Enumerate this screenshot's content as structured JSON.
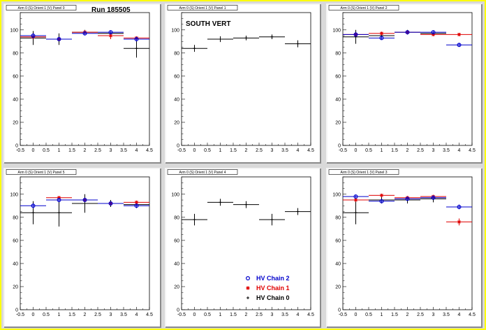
{
  "colors": {
    "hv0": "#000000",
    "hv1": "#e00000",
    "hv2": "#0000cc"
  },
  "run_label": "Run 185505",
  "legend": [
    {
      "key": "hv2",
      "label": "HV Chain 2",
      "marker": "circle"
    },
    {
      "key": "hv1",
      "label": "HV Chain 1",
      "marker": "star"
    },
    {
      "key": "hv0",
      "label": "HV Chain 0",
      "marker": "plus"
    }
  ],
  "chart_data": [
    {
      "type": "scatter",
      "title": "Arm 0 (S) Orient 1 (V) Panel 0",
      "annotation": "",
      "xlim": [
        -0.5,
        4.5
      ],
      "ylim": [
        0,
        115
      ],
      "xticks": [
        "-0.5",
        "0",
        "0.5",
        "1",
        "1.5",
        "2",
        "2.5",
        "3",
        "3.5",
        "4",
        "4.5"
      ],
      "yticks": [
        "0",
        "20",
        "40",
        "60",
        "80",
        "100"
      ],
      "series": [
        {
          "key": "hv0",
          "points": [
            {
              "x": 0,
              "y": 93,
              "xerr": 0.5,
              "yerr": 6
            },
            {
              "x": 1,
              "y": 92,
              "xerr": 0.5,
              "yerr": 5
            },
            {
              "x": 2,
              "y": 98,
              "xerr": 0.5,
              "yerr": 2
            },
            {
              "x": 3,
              "y": 97,
              "xerr": 0.5,
              "yerr": 2
            },
            {
              "x": 4,
              "y": 84,
              "xerr": 0.5,
              "yerr": 8
            }
          ]
        },
        {
          "key": "hv1",
          "points": [
            {
              "x": 0,
              "y": 94,
              "xerr": 0.5,
              "yerr": 1.5
            },
            {
              "x": 1,
              "y": 92,
              "xerr": 0.5,
              "yerr": 1
            },
            {
              "x": 2,
              "y": 98,
              "xerr": 0.5,
              "yerr": 1
            },
            {
              "x": 3,
              "y": 95,
              "xerr": 0.5,
              "yerr": 3
            },
            {
              "x": 4,
              "y": 93,
              "xerr": 0.5,
              "yerr": 1
            }
          ]
        },
        {
          "key": "hv2",
          "points": [
            {
              "x": 0,
              "y": 95,
              "xerr": 0.5,
              "yerr": 2
            },
            {
              "x": 1,
              "y": 92,
              "xerr": 0.5,
              "yerr": 1.5
            },
            {
              "x": 2,
              "y": 97,
              "xerr": 0.5,
              "yerr": 1
            },
            {
              "x": 3,
              "y": 98,
              "xerr": 0.5,
              "yerr": 1
            },
            {
              "x": 4,
              "y": 92,
              "xerr": 0.5,
              "yerr": 2
            }
          ]
        }
      ]
    },
    {
      "type": "scatter",
      "title": "Arm 0 (S) Orient 1 (V) Panel 1",
      "annotation": "SOUTH VERT",
      "xlim": [
        -0.5,
        4.5
      ],
      "ylim": [
        0,
        115
      ],
      "xticks": [
        "-0.5",
        "0",
        "0.5",
        "1",
        "1.5",
        "2",
        "2.5",
        "3",
        "3.5",
        "4",
        "4.5"
      ],
      "yticks": [
        "0",
        "20",
        "40",
        "60",
        "80",
        "100"
      ],
      "series": [
        {
          "key": "hv0",
          "points": [
            {
              "x": 0,
              "y": 84,
              "xerr": 0.5,
              "yerr": 3
            },
            {
              "x": 1,
              "y": 92,
              "xerr": 0.5,
              "yerr": 2.5
            },
            {
              "x": 2,
              "y": 93,
              "xerr": 0.5,
              "yerr": 2
            },
            {
              "x": 3,
              "y": 94,
              "xerr": 0.5,
              "yerr": 2
            },
            {
              "x": 4,
              "y": 88,
              "xerr": 0.5,
              "yerr": 3
            }
          ]
        }
      ]
    },
    {
      "type": "scatter",
      "title": "Arm 0 (S) Orient 1 (V) Panel 2",
      "annotation": "",
      "xlim": [
        -0.5,
        4.5
      ],
      "ylim": [
        0,
        115
      ],
      "xticks": [
        "-0.5",
        "0",
        "0.5",
        "1",
        "1.5",
        "2",
        "2.5",
        "3",
        "3.5",
        "4",
        "4.5"
      ],
      "yticks": [
        "0",
        "20",
        "40",
        "60",
        "80",
        "100"
      ],
      "series": [
        {
          "key": "hv0",
          "points": [
            {
              "x": 0,
              "y": 94,
              "xerr": 0.5,
              "yerr": 6
            },
            {
              "x": 1,
              "y": 95,
              "xerr": 0.5,
              "yerr": 3
            },
            {
              "x": 2,
              "y": 98,
              "xerr": 0.5,
              "yerr": 2
            },
            {
              "x": 3,
              "y": 97,
              "xerr": 0.5,
              "yerr": 2
            }
          ]
        },
        {
          "key": "hv1",
          "points": [
            {
              "x": 0,
              "y": 96,
              "xerr": 0.5,
              "yerr": 1
            },
            {
              "x": 1,
              "y": 97,
              "xerr": 0.5,
              "yerr": 1
            },
            {
              "x": 2,
              "y": 98,
              "xerr": 0.5,
              "yerr": 1
            },
            {
              "x": 3,
              "y": 96,
              "xerr": 0.5,
              "yerr": 1
            },
            {
              "x": 4,
              "y": 96,
              "xerr": 0.5,
              "yerr": 1
            }
          ]
        },
        {
          "key": "hv2",
          "points": [
            {
              "x": 0,
              "y": 96,
              "xerr": 0.5,
              "yerr": 1
            },
            {
              "x": 1,
              "y": 93,
              "xerr": 0.5,
              "yerr": 1
            },
            {
              "x": 2,
              "y": 98,
              "xerr": 0.5,
              "yerr": 1
            },
            {
              "x": 3,
              "y": 98,
              "xerr": 0.5,
              "yerr": 1
            },
            {
              "x": 4,
              "y": 87,
              "xerr": 0.5,
              "yerr": 1.5
            }
          ]
        }
      ]
    },
    {
      "type": "scatter",
      "title": "Arm 0 (S) Orient 1 (V) Panel 5",
      "annotation": "",
      "xlim": [
        -0.5,
        4.5
      ],
      "ylim": [
        0,
        115
      ],
      "xticks": [
        "-0.5",
        "0",
        "0.5",
        "1",
        "1.5",
        "2",
        "2.5",
        "3",
        "3.5",
        "4",
        "4.5"
      ],
      "yticks": [
        "0",
        "20",
        "40",
        "60",
        "80",
        "100"
      ],
      "series": [
        {
          "key": "hv0",
          "points": [
            {
              "x": 0,
              "y": 84,
              "xerr": 0.5,
              "yerr": 10
            },
            {
              "x": 1,
              "y": 84,
              "xerr": 0.5,
              "yerr": 12
            },
            {
              "x": 2,
              "y": 92,
              "xerr": 0.5,
              "yerr": 8
            },
            {
              "x": 3,
              "y": 92,
              "xerr": 0.5,
              "yerr": 3
            },
            {
              "x": 4,
              "y": 91,
              "xerr": 0.5,
              "yerr": 3
            }
          ]
        },
        {
          "key": "hv1",
          "points": [
            {
              "x": 1,
              "y": 97,
              "xerr": 0.5,
              "yerr": 1
            },
            {
              "x": 2,
              "y": 95,
              "xerr": 0.5,
              "yerr": 1.5
            },
            {
              "x": 3,
              "y": 92,
              "xerr": 0.5,
              "yerr": 1
            },
            {
              "x": 4,
              "y": 93,
              "xerr": 0.5,
              "yerr": 1
            }
          ]
        },
        {
          "key": "hv2",
          "points": [
            {
              "x": 0,
              "y": 90,
              "xerr": 0.5,
              "yerr": 2
            },
            {
              "x": 1,
              "y": 95,
              "xerr": 0.5,
              "yerr": 1.5
            },
            {
              "x": 2,
              "y": 95,
              "xerr": 0.5,
              "yerr": 1
            },
            {
              "x": 3,
              "y": 92,
              "xerr": 0.5,
              "yerr": 1
            },
            {
              "x": 4,
              "y": 90,
              "xerr": 0.5,
              "yerr": 1
            }
          ]
        }
      ]
    },
    {
      "type": "scatter",
      "title": "Arm 0 (S) Orient 1 (V) Panel 4",
      "annotation": "",
      "xlim": [
        -0.5,
        4.5
      ],
      "ylim": [
        0,
        115
      ],
      "xticks": [
        "-0.5",
        "0",
        "0.5",
        "1",
        "1.5",
        "2",
        "2.5",
        "3",
        "3.5",
        "4",
        "4.5"
      ],
      "yticks": [
        "0",
        "20",
        "40",
        "60",
        "80",
        "100"
      ],
      "series": [
        {
          "key": "hv0",
          "points": [
            {
              "x": 0,
              "y": 78,
              "xerr": 0.5,
              "yerr": 5
            },
            {
              "x": 1,
              "y": 93,
              "xerr": 0.5,
              "yerr": 3
            },
            {
              "x": 2,
              "y": 91,
              "xerr": 0.5,
              "yerr": 3
            },
            {
              "x": 3,
              "y": 78,
              "xerr": 0.5,
              "yerr": 5
            },
            {
              "x": 4,
              "y": 85,
              "xerr": 0.5,
              "yerr": 3
            }
          ]
        }
      ]
    },
    {
      "type": "scatter",
      "title": "Arm 0 (S) Orient 1 (V) Panel 3",
      "annotation": "",
      "xlim": [
        -0.5,
        4.5
      ],
      "ylim": [
        0,
        115
      ],
      "xticks": [
        "-0.5",
        "0",
        "0.5",
        "1",
        "1.5",
        "2",
        "2.5",
        "3",
        "3.5",
        "4",
        "4.5"
      ],
      "yticks": [
        "0",
        "20",
        "40",
        "60",
        "80",
        "100"
      ],
      "series": [
        {
          "key": "hv0",
          "points": [
            {
              "x": 0,
              "y": 84,
              "xerr": 0.5,
              "yerr": 10
            },
            {
              "x": 1,
              "y": 95,
              "xerr": 0.5,
              "yerr": 3
            },
            {
              "x": 2,
              "y": 95,
              "xerr": 0.5,
              "yerr": 3
            },
            {
              "x": 3,
              "y": 96,
              "xerr": 0.5,
              "yerr": 3
            }
          ]
        },
        {
          "key": "hv1",
          "points": [
            {
              "x": 0,
              "y": 95,
              "xerr": 0.5,
              "yerr": 1
            },
            {
              "x": 1,
              "y": 99,
              "xerr": 0.5,
              "yerr": 1
            },
            {
              "x": 2,
              "y": 97,
              "xerr": 0.5,
              "yerr": 1
            },
            {
              "x": 3,
              "y": 98,
              "xerr": 0.5,
              "yerr": 1
            },
            {
              "x": 4,
              "y": 76,
              "xerr": 0.5,
              "yerr": 3
            }
          ]
        },
        {
          "key": "hv2",
          "points": [
            {
              "x": 0,
              "y": 98,
              "xerr": 0.5,
              "yerr": 1
            },
            {
              "x": 1,
              "y": 94,
              "xerr": 0.5,
              "yerr": 1
            },
            {
              "x": 2,
              "y": 96,
              "xerr": 0.5,
              "yerr": 1
            },
            {
              "x": 3,
              "y": 97,
              "xerr": 0.5,
              "yerr": 1
            },
            {
              "x": 4,
              "y": 89,
              "xerr": 0.5,
              "yerr": 2
            }
          ]
        }
      ]
    }
  ]
}
